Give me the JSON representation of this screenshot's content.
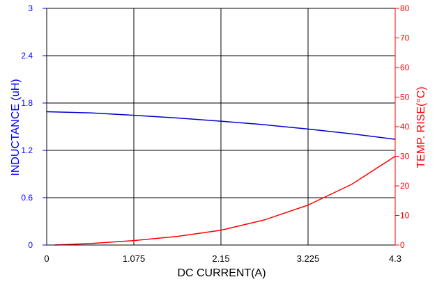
{
  "chart_data": {
    "type": "line",
    "title": "",
    "xlabel": "DC CURRENT(A)",
    "xlim": [
      0,
      4.3
    ],
    "x_ticks": [
      "0",
      "1.075",
      "2.15",
      "3.225",
      "4.3"
    ],
    "grid": true,
    "left_axis": {
      "label": "INDUCTANCE (uH)",
      "ylim": [
        0,
        3
      ],
      "ticks": [
        "0",
        "0.6",
        "1.2",
        "1.8",
        "2.4",
        "3"
      ],
      "color": "#0000ff"
    },
    "right_axis": {
      "label": "TEMP. RISE(°C)",
      "ylim": [
        0,
        80
      ],
      "ticks": [
        "0",
        "10",
        "20",
        "30",
        "40",
        "50",
        "60",
        "70",
        "80"
      ],
      "color": "#ff0000"
    },
    "series": [
      {
        "axis": "left",
        "color": "#0000cc",
        "x": [
          0,
          0.5375,
          1.075,
          1.6125,
          2.15,
          2.6875,
          3.225,
          3.7625,
          4.3
        ],
        "y": [
          1.69,
          1.675,
          1.645,
          1.61,
          1.57,
          1.525,
          1.47,
          1.41,
          1.34
        ]
      },
      {
        "axis": "right",
        "color": "#ff0000",
        "x": [
          0.1,
          0.5375,
          1.075,
          1.6125,
          2.15,
          2.6875,
          3.225,
          3.7625,
          4.3
        ],
        "y": [
          0,
          0.5,
          1.5,
          2.9,
          5,
          8.5,
          13.5,
          20.5,
          30
        ]
      }
    ]
  }
}
